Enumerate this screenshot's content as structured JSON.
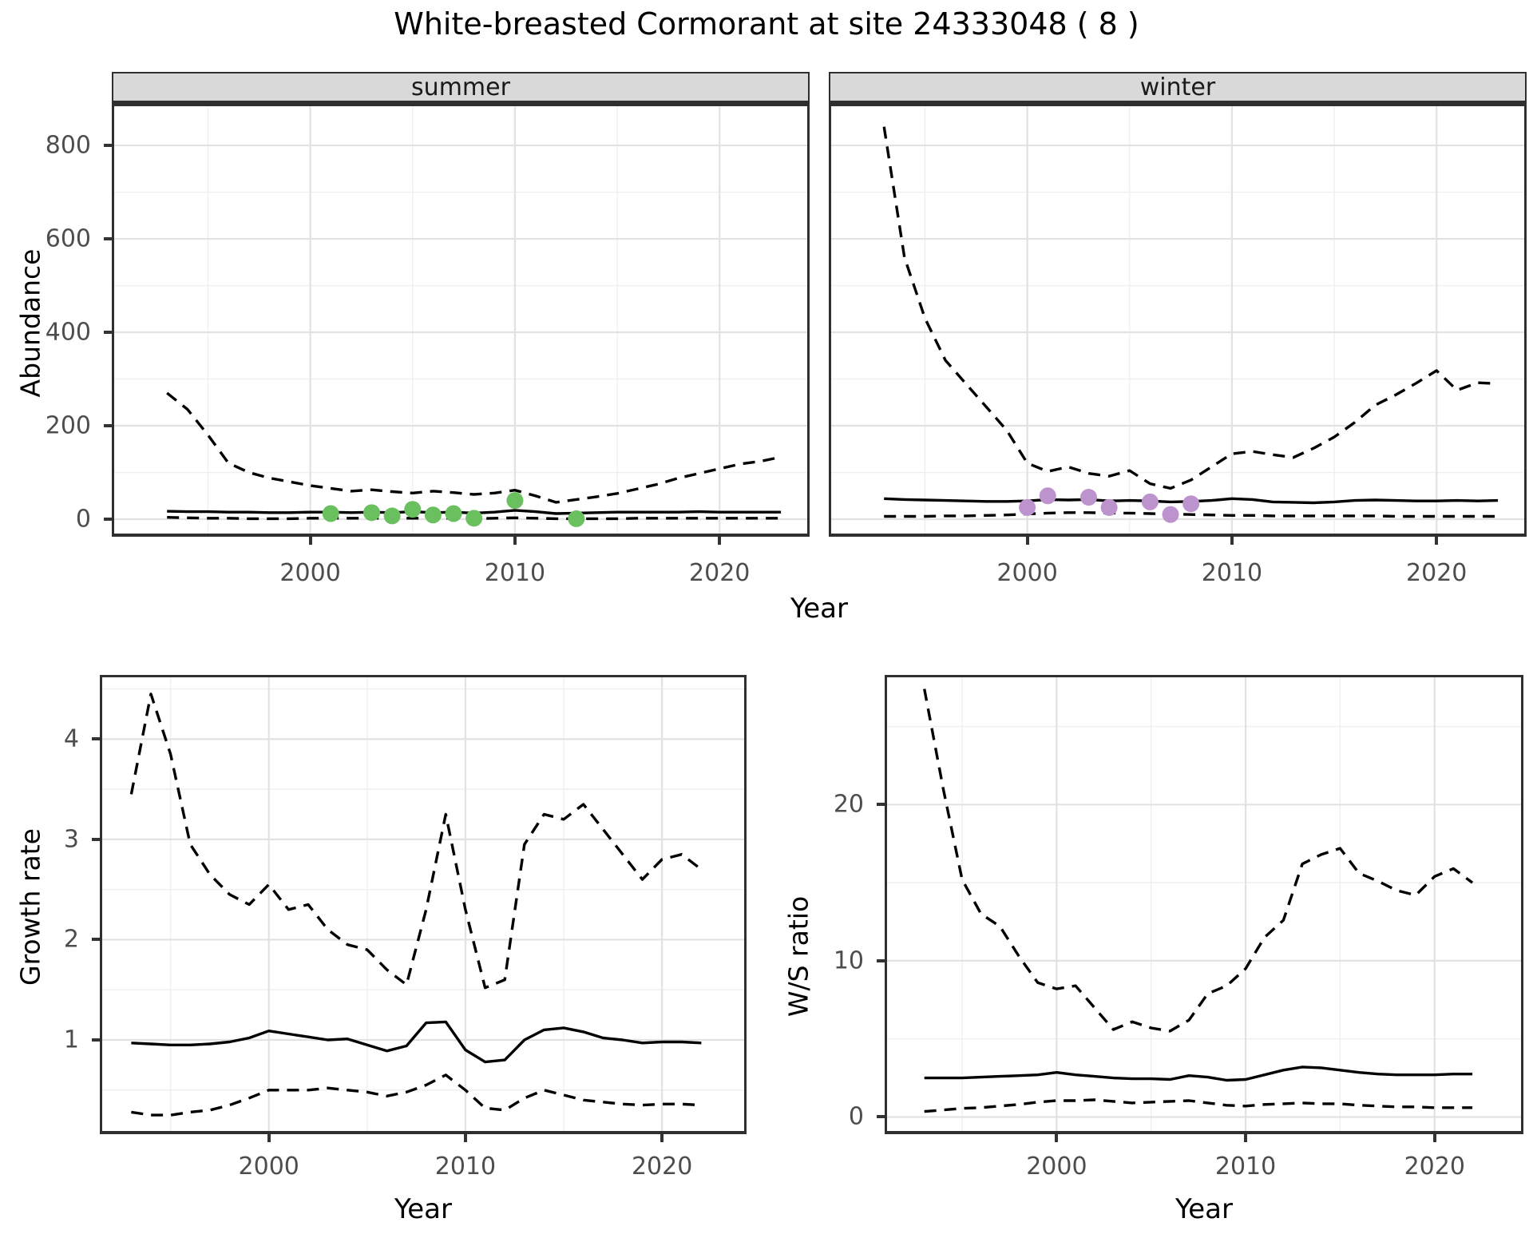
{
  "title": "White-breasted Cormorant at site 24333048 ( 8 )",
  "colors": {
    "observed_summer": "#6abf5e",
    "observed_winter": "#bd93ce",
    "line": "#000000",
    "strip_fill": "#d9d9d9",
    "grid_major": "#e2e2e2",
    "grid_minor": "#efefef",
    "panel_border": "#2f2f2f",
    "tick_text": "#4d4d4d"
  },
  "chart_data": [
    {
      "id": "abundance-summer",
      "type": "line",
      "facet": "summer",
      "xlabel": "Year",
      "ylabel": "Abundance",
      "x": [
        1993,
        1994,
        1995,
        1996,
        1997,
        1998,
        1999,
        2000,
        2001,
        2002,
        2003,
        2004,
        2005,
        2006,
        2007,
        2008,
        2009,
        2010,
        2011,
        2012,
        2013,
        2014,
        2015,
        2016,
        2017,
        2018,
        2019,
        2020,
        2021,
        2022,
        2023
      ],
      "series": [
        {
          "name": "upper-95ci",
          "style": "dashed",
          "values": [
            270,
            235,
            180,
            120,
            100,
            88,
            80,
            72,
            66,
            60,
            63,
            59,
            56,
            60,
            57,
            53,
            56,
            62,
            50,
            36,
            42,
            48,
            55,
            65,
            75,
            88,
            98,
            108,
            118,
            124,
            133
          ]
        },
        {
          "name": "estimate",
          "style": "solid",
          "values": [
            17,
            16,
            16,
            15,
            15,
            14,
            14,
            15,
            15,
            14,
            15,
            14,
            16,
            14,
            15,
            13,
            15,
            19,
            16,
            12,
            13,
            14,
            15,
            15,
            15,
            15,
            16,
            15,
            15,
            15,
            15
          ]
        },
        {
          "name": "lower-95ci",
          "style": "dashed",
          "values": [
            4,
            3,
            2,
            2,
            1,
            1,
            1,
            2,
            2,
            2,
            2,
            2,
            2,
            2,
            2,
            1,
            2,
            3,
            2,
            1,
            1,
            1,
            1,
            2,
            2,
            2,
            2,
            2,
            2,
            2,
            2
          ]
        }
      ],
      "points": {
        "name": "observed-counts",
        "color": "#6abf5e",
        "xy": [
          [
            2001,
            12
          ],
          [
            2003,
            14
          ],
          [
            2004,
            7
          ],
          [
            2005,
            21
          ],
          [
            2006,
            9
          ],
          [
            2007,
            12
          ],
          [
            2008,
            2
          ],
          [
            2010,
            40
          ],
          [
            2013,
            1
          ]
        ]
      },
      "xlim": [
        1990.3,
        2024.4
      ],
      "ylim": [
        -37.6,
        889
      ],
      "xticks": [
        2000,
        2010,
        2020
      ],
      "xminor": [
        1995,
        2005,
        2015
      ],
      "yticks": [
        0,
        200,
        400,
        600,
        800
      ],
      "yminor": [
        100,
        300,
        500,
        700
      ]
    },
    {
      "id": "abundance-winter",
      "type": "line",
      "facet": "winter",
      "xlabel": "Year",
      "ylabel": "Abundance",
      "x": [
        1993,
        1994,
        1995,
        1996,
        1997,
        1998,
        1999,
        2000,
        2001,
        2002,
        2003,
        2004,
        2005,
        2006,
        2007,
        2008,
        2009,
        2010,
        2011,
        2012,
        2013,
        2014,
        2015,
        2016,
        2017,
        2018,
        2019,
        2020,
        2021,
        2022,
        2023
      ],
      "series": [
        {
          "name": "upper-95ci",
          "style": "dashed",
          "values": [
            840,
            560,
            430,
            340,
            290,
            240,
            190,
            120,
            102,
            112,
            98,
            92,
            104,
            76,
            66,
            84,
            112,
            140,
            145,
            138,
            132,
            152,
            176,
            207,
            244,
            266,
            291,
            318,
            276,
            292,
            290
          ]
        },
        {
          "name": "estimate",
          "style": "solid",
          "values": [
            44,
            42,
            41,
            40,
            39,
            38,
            38,
            39,
            42,
            41,
            42,
            39,
            40,
            39,
            37,
            38,
            40,
            44,
            42,
            37,
            36,
            35,
            37,
            40,
            41,
            40,
            39,
            39,
            40,
            39,
            40
          ]
        },
        {
          "name": "lower-95ci",
          "style": "dashed",
          "values": [
            6,
            6,
            6,
            7,
            7,
            8,
            9,
            11,
            13,
            14,
            14,
            13,
            13,
            12,
            11,
            10,
            9,
            8,
            8,
            7,
            7,
            7,
            7,
            7,
            7,
            6,
            6,
            6,
            6,
            6,
            6
          ]
        }
      ],
      "points": {
        "name": "observed-counts",
        "color": "#bd93ce",
        "xy": [
          [
            2000,
            25
          ],
          [
            2001,
            50
          ],
          [
            2003,
            47
          ],
          [
            2004,
            25
          ],
          [
            2006,
            37
          ],
          [
            2007,
            10
          ],
          [
            2008,
            33
          ]
        ]
      },
      "xlim": [
        1990.3,
        2024.4
      ],
      "ylim": [
        -37.6,
        889
      ],
      "xticks": [
        2000,
        2010,
        2020
      ],
      "xminor": [
        1995,
        2005,
        2015
      ],
      "yticks": [
        0,
        200,
        400,
        600,
        800
      ],
      "yminor": [
        100,
        300,
        500,
        700
      ]
    },
    {
      "id": "growth-rate",
      "type": "line",
      "facet": null,
      "xlabel": "Year",
      "ylabel": "Growth rate",
      "x": [
        1993,
        1994,
        1995,
        1996,
        1997,
        1998,
        1999,
        2000,
        2001,
        2002,
        2003,
        2004,
        2005,
        2006,
        2007,
        2008,
        2009,
        2010,
        2011,
        2012,
        2013,
        2014,
        2015,
        2016,
        2017,
        2018,
        2019,
        2020,
        2021,
        2022
      ],
      "series": [
        {
          "name": "upper-95ci",
          "style": "dashed",
          "values": [
            3.45,
            4.45,
            3.85,
            2.95,
            2.65,
            2.45,
            2.35,
            2.55,
            2.3,
            2.35,
            2.1,
            1.95,
            1.9,
            1.7,
            1.55,
            2.3,
            3.25,
            2.3,
            1.52,
            1.6,
            2.95,
            3.25,
            3.2,
            3.35,
            3.1,
            2.85,
            2.6,
            2.8,
            2.85,
            2.7
          ]
        },
        {
          "name": "estimate",
          "style": "solid",
          "values": [
            0.97,
            0.96,
            0.95,
            0.95,
            0.96,
            0.98,
            1.02,
            1.09,
            1.06,
            1.03,
            1.0,
            1.01,
            0.95,
            0.89,
            0.94,
            1.17,
            1.18,
            0.9,
            0.78,
            0.8,
            1.0,
            1.1,
            1.12,
            1.08,
            1.02,
            1.0,
            0.97,
            0.98,
            0.98,
            0.97
          ]
        },
        {
          "name": "lower-95ci",
          "style": "dashed",
          "values": [
            0.28,
            0.25,
            0.25,
            0.28,
            0.3,
            0.35,
            0.42,
            0.5,
            0.5,
            0.5,
            0.52,
            0.5,
            0.48,
            0.44,
            0.48,
            0.55,
            0.65,
            0.5,
            0.32,
            0.3,
            0.42,
            0.5,
            0.45,
            0.4,
            0.38,
            0.36,
            0.35,
            0.36,
            0.36,
            0.35
          ]
        }
      ],
      "points": null,
      "xlim": [
        1991.4,
        2024.3
      ],
      "ylim": [
        0.06,
        4.64
      ],
      "xticks": [
        2000,
        2010,
        2020
      ],
      "xminor": [
        1995,
        2005,
        2015
      ],
      "yticks": [
        1,
        2,
        3,
        4
      ],
      "yminor": [
        0.5,
        1.5,
        2.5,
        3.5,
        4.5
      ]
    },
    {
      "id": "ws-ratio",
      "type": "line",
      "facet": null,
      "xlabel": "Year",
      "ylabel": "W/S ratio",
      "x": [
        1993,
        1994,
        1995,
        1996,
        1997,
        1998,
        1999,
        2000,
        2001,
        2002,
        2003,
        2004,
        2005,
        2006,
        2007,
        2008,
        2009,
        2010,
        2011,
        2012,
        2013,
        2014,
        2015,
        2016,
        2017,
        2018,
        2019,
        2020,
        2021,
        2022
      ],
      "series": [
        {
          "name": "upper-95ci",
          "style": "dashed",
          "values": [
            27.4,
            21.0,
            15.2,
            13.0,
            12.2,
            10.3,
            8.6,
            8.2,
            8.4,
            7.0,
            5.6,
            6.1,
            5.7,
            5.5,
            6.2,
            7.9,
            8.4,
            9.5,
            11.5,
            12.6,
            16.2,
            16.8,
            17.2,
            15.6,
            15.1,
            14.5,
            14.2,
            15.4,
            15.9,
            15.0
          ]
        },
        {
          "name": "estimate",
          "style": "solid",
          "values": [
            2.5,
            2.5,
            2.5,
            2.55,
            2.6,
            2.65,
            2.7,
            2.85,
            2.7,
            2.6,
            2.5,
            2.45,
            2.45,
            2.4,
            2.65,
            2.55,
            2.35,
            2.4,
            2.7,
            3.0,
            3.2,
            3.15,
            3.0,
            2.85,
            2.75,
            2.7,
            2.7,
            2.7,
            2.75,
            2.75
          ]
        },
        {
          "name": "lower-95ci",
          "style": "dashed",
          "values": [
            0.35,
            0.45,
            0.55,
            0.6,
            0.7,
            0.8,
            0.95,
            1.05,
            1.05,
            1.1,
            1.0,
            0.9,
            0.95,
            1.0,
            1.05,
            0.9,
            0.75,
            0.7,
            0.8,
            0.85,
            0.9,
            0.85,
            0.85,
            0.75,
            0.7,
            0.65,
            0.65,
            0.6,
            0.6,
            0.6
          ]
        }
      ],
      "points": null,
      "xlim": [
        1990.9,
        2024.7
      ],
      "ylim": [
        -1.1,
        28.3
      ],
      "xticks": [
        2000,
        2010,
        2020
      ],
      "xminor": [
        1995,
        2005,
        2015
      ],
      "yticks": [
        0,
        10,
        20
      ],
      "yminor": [
        5,
        15,
        25
      ]
    }
  ]
}
